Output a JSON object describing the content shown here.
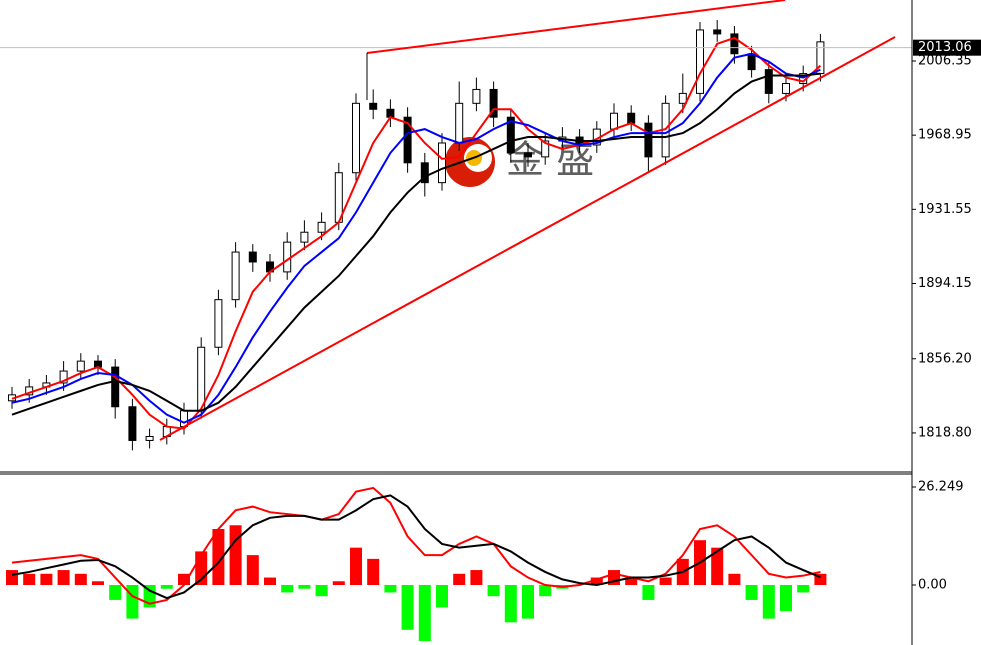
{
  "chart_data": [
    {
      "type": "candlestick",
      "watermark": "金 盛",
      "open": [
        1835,
        1838,
        1842,
        1844,
        1850,
        1855,
        1852,
        1832,
        1815,
        1817,
        1822,
        1830,
        1862,
        1886,
        1910,
        1905,
        1900,
        1915,
        1920,
        1925,
        1950,
        1985,
        1982,
        1978,
        1955,
        1945,
        1965,
        1985,
        1992,
        1978,
        1960,
        1958,
        1966,
        1968,
        1964,
        1972,
        1980,
        1975,
        1958,
        1985,
        1990,
        2022,
        2020,
        2010,
        2002,
        1990,
        1995,
        2000
      ],
      "high": [
        1842,
        1846,
        1848,
        1855,
        1859,
        1858,
        1856,
        1836,
        1821,
        1826,
        1834,
        1867,
        1891,
        1915,
        1914,
        1909,
        1920,
        1926,
        1930,
        1955,
        1990,
        1992,
        1987,
        1983,
        1960,
        1970,
        1996,
        1998,
        1996,
        1982,
        1965,
        1970,
        1973,
        1972,
        1976,
        1985,
        1984,
        1979,
        1989,
        2000,
        2026,
        2027,
        2024,
        2014,
        2006,
        2000,
        2004,
        2020
      ],
      "low": [
        1831,
        1834,
        1838,
        1840,
        1846,
        1848,
        1826,
        1810,
        1811,
        1813,
        1818,
        1826,
        1858,
        1882,
        1900,
        1895,
        1896,
        1911,
        1916,
        1921,
        1946,
        1977,
        1973,
        1950,
        1938,
        1941,
        1961,
        1981,
        1973,
        1955,
        1953,
        1954,
        1962,
        1960,
        1960,
        1968,
        1971,
        1950,
        1954,
        1980,
        1986,
        2016,
        2005,
        1998,
        1985,
        1986,
        1991,
        1996
      ],
      "close": [
        1838,
        1842,
        1844,
        1850,
        1855,
        1852,
        1832,
        1815,
        1817,
        1822,
        1830,
        1862,
        1886,
        1910,
        1905,
        1900,
        1915,
        1920,
        1925,
        1950,
        1985,
        1982,
        1978,
        1955,
        1945,
        1965,
        1985,
        1992,
        1978,
        1960,
        1958,
        1966,
        1968,
        1964,
        1972,
        1980,
        1975,
        1958,
        1985,
        1990,
        2022,
        2020,
        2010,
        2002,
        1990,
        1995,
        2000,
        2016
      ],
      "series": [
        {
          "color": "#ff0000",
          "values": [
            1836,
            1839,
            1842,
            1845,
            1849,
            1852,
            1847,
            1838,
            1828,
            1822,
            1821,
            1831,
            1848,
            1870,
            1890,
            1900,
            1906,
            1912,
            1918,
            1925,
            1945,
            1965,
            1978,
            1975,
            1965,
            1957,
            1958,
            1970,
            1982,
            1982,
            1972,
            1965,
            1962,
            1964,
            1967,
            1972,
            1975,
            1970,
            1972,
            1982,
            2000,
            2015,
            2018,
            2012,
            2004,
            1998,
            1996,
            2004
          ]
        },
        {
          "color": "#0000ff",
          "values": [
            1834,
            1836,
            1839,
            1842,
            1846,
            1849,
            1848,
            1843,
            1835,
            1828,
            1824,
            1828,
            1838,
            1852,
            1867,
            1880,
            1892,
            1903,
            1910,
            1917,
            1930,
            1945,
            1960,
            1970,
            1972,
            1968,
            1965,
            1967,
            1972,
            1976,
            1974,
            1970,
            1966,
            1964,
            1965,
            1968,
            1970,
            1970,
            1970,
            1975,
            1985,
            1998,
            2008,
            2010,
            2006,
            2000,
            1998,
            2002
          ]
        },
        {
          "color": "#000000",
          "values": [
            1828,
            1831,
            1834,
            1837,
            1840,
            1843,
            1845,
            1843,
            1840,
            1835,
            1830,
            1830,
            1834,
            1842,
            1852,
            1862,
            1872,
            1882,
            1890,
            1898,
            1908,
            1918,
            1930,
            1940,
            1948,
            1952,
            1955,
            1958,
            1962,
            1966,
            1968,
            1968,
            1967,
            1966,
            1966,
            1967,
            1968,
            1968,
            1968,
            1970,
            1975,
            1982,
            1990,
            1996,
            1999,
            1999,
            1999,
            2000
          ]
        }
      ],
      "last_price": 2013.06,
      "ylim": [
        1799.6,
        2037.1
      ],
      "yticks": [
        2006.35,
        1968.95,
        1931.55,
        1894.15,
        {
          "value": 1856.2,
          "label": "1856.20"
        },
        {
          "value": 1818.8,
          "label": "1818.80"
        }
      ]
    },
    {
      "type": "macd",
      "histogram": [
        4,
        3,
        3,
        4,
        3,
        1,
        -4,
        -9,
        -6,
        -1,
        3,
        9,
        15,
        16,
        8,
        2,
        -2,
        -1,
        -3,
        1,
        10,
        7,
        -2,
        -12,
        -15,
        -6,
        3,
        4,
        -3,
        -10,
        -9,
        -3,
        -1,
        0,
        2,
        4,
        2,
        -4,
        2,
        7,
        12,
        10,
        3,
        -4,
        -9,
        -7,
        -2,
        3
      ],
      "positive_color": "#ff0000",
      "negative_color": "#00ff00",
      "series": [
        {
          "color": "#ff0000",
          "values": [
            6,
            6.5,
            7,
            7.5,
            8,
            7,
            2,
            -3,
            -5,
            -4,
            0,
            8,
            15,
            20,
            21,
            19.5,
            19,
            18.5,
            17.5,
            19,
            25,
            26,
            22,
            13,
            8,
            8,
            11,
            13,
            11,
            5,
            2,
            0,
            -0.5,
            0,
            1.5,
            3,
            2,
            1,
            3,
            8,
            15,
            16,
            13,
            8,
            3,
            2,
            2.5,
            3.5
          ]
        },
        {
          "color": "#000000",
          "values": [
            2.7,
            3.5,
            4.5,
            5.5,
            6.5,
            6.7,
            5,
            2,
            -1.5,
            -3.5,
            -2,
            1.5,
            6,
            12,
            16,
            18,
            18.5,
            18.5,
            17.5,
            17.5,
            20,
            23,
            24,
            21,
            15,
            11,
            10,
            10.5,
            11,
            9,
            6,
            3.5,
            1.5,
            0.5,
            0,
            1,
            2,
            2,
            2.5,
            3.5,
            6,
            9,
            12,
            13,
            10,
            6,
            4,
            2.1
          ]
        }
      ],
      "ylim": [
        -16.07,
        29.73
      ],
      "yticks": [
        26.249,
        {
          "value": 0,
          "label": "0.00"
        }
      ]
    }
  ]
}
